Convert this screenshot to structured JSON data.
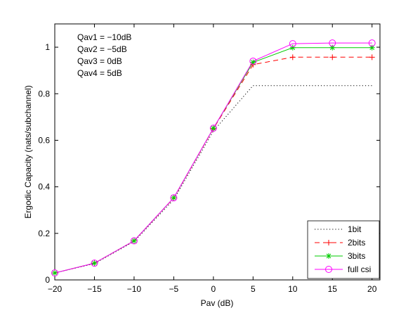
{
  "chart_data": {
    "type": "line",
    "title": "",
    "xlabel": "Pav (dB)",
    "ylabel": "Ergodic Capacity (nats/subchannel)",
    "xlim": [
      -20,
      21
    ],
    "ylim": [
      0,
      1.1
    ],
    "x": [
      -20,
      -15,
      -10,
      -5,
      0,
      5,
      10,
      15,
      20
    ],
    "xticks": [
      -20,
      -15,
      -10,
      -5,
      0,
      5,
      10,
      15,
      20
    ],
    "xtick_labels": [
      "−20",
      "−15",
      "−10",
      "−5",
      "0",
      "5",
      "10",
      "15",
      "20"
    ],
    "yticks": [
      0,
      0.2,
      0.4,
      0.6,
      0.8,
      1
    ],
    "ytick_labels": [
      "0",
      "0.2",
      "0.4",
      "0.6",
      "0.8",
      "1"
    ],
    "grid": false,
    "legend_position": "bottom-right",
    "annotations": [
      "Qav1 = −10dB",
      "Qav2 = −5dB",
      "Qav3 = 0dB",
      "Qav4 = 5dB"
    ],
    "series": [
      {
        "name": "1bit",
        "color": "#000000",
        "line": "dotted",
        "marker": "none",
        "values": [
          0.03,
          0.07,
          0.165,
          0.345,
          0.64,
          0.835,
          0.835,
          0.835,
          0.835
        ]
      },
      {
        "name": "2bits",
        "color": "#ff0000",
        "line": "dashed",
        "marker": "plus",
        "values": [
          0.03,
          0.072,
          0.168,
          0.352,
          0.65,
          0.925,
          0.957,
          0.957,
          0.957
        ]
      },
      {
        "name": "3bits",
        "color": "#00cc00",
        "line": "solid",
        "marker": "asterisk",
        "values": [
          0.03,
          0.072,
          0.168,
          0.353,
          0.652,
          0.935,
          0.998,
          0.998,
          0.998
        ]
      },
      {
        "name": "full csi",
        "color": "#ff00ff",
        "line": "solid",
        "marker": "circle",
        "values": [
          0.03,
          0.072,
          0.168,
          0.353,
          0.652,
          0.94,
          1.015,
          1.018,
          1.018
        ]
      }
    ]
  }
}
